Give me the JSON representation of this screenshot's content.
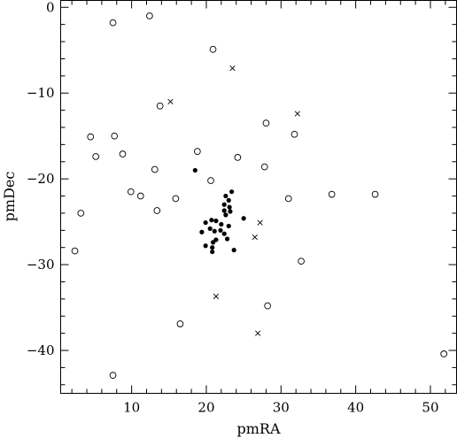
{
  "chart_data": {
    "type": "scatter",
    "xlabel": "pmRA",
    "ylabel": "pmDec",
    "xlim": [
      0.5,
      53.5
    ],
    "ylim": [
      -45.0,
      0.8
    ],
    "grid": false,
    "xticks": [
      10,
      20,
      30,
      40,
      50
    ],
    "yticks": [
      0,
      -10,
      -20,
      -30,
      -40
    ],
    "series": [
      {
        "marker": "filled-circle",
        "points": [
          [
            18.5,
            -19.0
          ],
          [
            23.4,
            -21.5
          ],
          [
            22.6,
            -22.0
          ],
          [
            23.0,
            -22.5
          ],
          [
            22.4,
            -23.0
          ],
          [
            23.1,
            -23.3
          ],
          [
            22.4,
            -23.7
          ],
          [
            23.2,
            -23.8
          ],
          [
            22.6,
            -24.2
          ],
          [
            25.0,
            -24.6
          ],
          [
            20.7,
            -24.8
          ],
          [
            21.3,
            -24.9
          ],
          [
            19.9,
            -25.1
          ],
          [
            22.0,
            -25.3
          ],
          [
            23.0,
            -25.5
          ],
          [
            20.5,
            -25.8
          ],
          [
            21.9,
            -26.0
          ],
          [
            21.1,
            -26.1
          ],
          [
            19.4,
            -26.2
          ],
          [
            22.4,
            -26.4
          ],
          [
            22.8,
            -27.0
          ],
          [
            21.3,
            -27.1
          ],
          [
            20.9,
            -27.4
          ],
          [
            19.9,
            -27.8
          ],
          [
            20.8,
            -28.0
          ],
          [
            23.7,
            -28.3
          ],
          [
            20.8,
            -28.5
          ]
        ]
      },
      {
        "marker": "open-circle",
        "points": [
          [
            7.5,
            -1.8
          ],
          [
            12.4,
            -1.0
          ],
          [
            20.9,
            -4.9
          ],
          [
            13.8,
            -11.5
          ],
          [
            28.0,
            -13.5
          ],
          [
            4.5,
            -15.1
          ],
          [
            7.7,
            -15.0
          ],
          [
            31.8,
            -14.8
          ],
          [
            5.2,
            -17.4
          ],
          [
            8.8,
            -17.1
          ],
          [
            18.8,
            -16.8
          ],
          [
            24.2,
            -17.5
          ],
          [
            27.8,
            -18.6
          ],
          [
            13.1,
            -18.9
          ],
          [
            20.6,
            -20.2
          ],
          [
            9.9,
            -21.5
          ],
          [
            11.2,
            -22.0
          ],
          [
            15.9,
            -22.3
          ],
          [
            31.0,
            -22.3
          ],
          [
            36.8,
            -21.8
          ],
          [
            42.6,
            -21.8
          ],
          [
            3.2,
            -24.0
          ],
          [
            13.4,
            -23.7
          ],
          [
            2.4,
            -28.4
          ],
          [
            32.7,
            -29.6
          ],
          [
            28.2,
            -34.8
          ],
          [
            16.5,
            -36.9
          ],
          [
            7.5,
            -42.9
          ],
          [
            51.8,
            -40.4
          ]
        ]
      },
      {
        "marker": "cross",
        "points": [
          [
            23.5,
            -7.1
          ],
          [
            15.2,
            -11.0
          ],
          [
            32.2,
            -12.4
          ],
          [
            27.2,
            -25.1
          ],
          [
            26.5,
            -26.8
          ],
          [
            21.3,
            -33.7
          ],
          [
            26.9,
            -38.0
          ]
        ]
      }
    ]
  }
}
